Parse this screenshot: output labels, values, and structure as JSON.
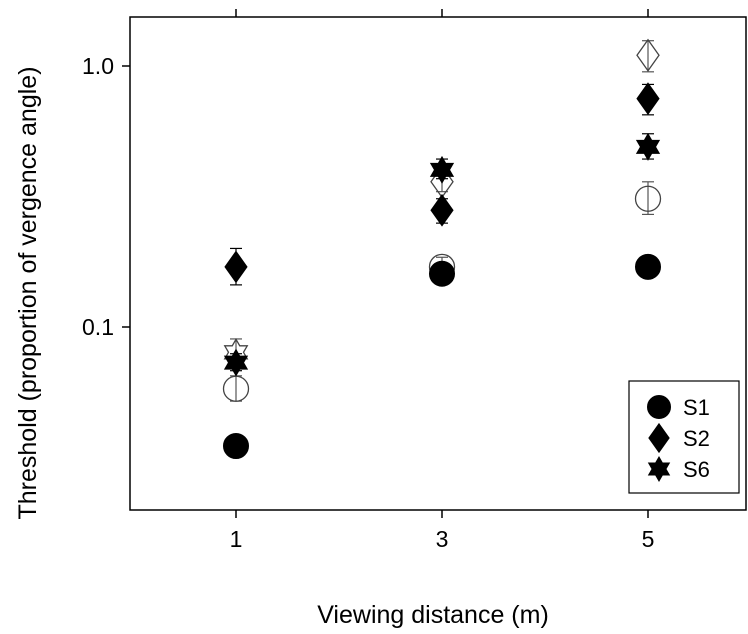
{
  "chart_data": {
    "type": "scatter",
    "title": "",
    "xlabel": "Viewing distance (m)",
    "ylabel": "Threshold (proportion of vergence angle)",
    "x_ticks": [
      1,
      3,
      5
    ],
    "x_tick_labels": [
      "1",
      "3",
      "5"
    ],
    "y_ticks": [
      0.1,
      1.0
    ],
    "y_tick_labels": [
      "0.1",
      "1.0"
    ],
    "xlim": [
      0,
      6
    ],
    "ylim": [
      0.022,
      2.0
    ],
    "y_scale": "log",
    "grid": false,
    "legend_position": "bottom-right",
    "series": [
      {
        "name": "S1",
        "marker": "circle",
        "filled": true,
        "points": [
          {
            "x": 1,
            "y": 0.035,
            "err_low": 0.032,
            "err_high": 0.038
          },
          {
            "x": 3,
            "y": 0.16,
            "err_low": 0.15,
            "err_high": 0.17
          },
          {
            "x": 5,
            "y": 0.17,
            "err_low": 0.155,
            "err_high": 0.185
          }
        ]
      },
      {
        "name": "S2",
        "marker": "diamond",
        "filled": true,
        "points": [
          {
            "x": 1,
            "y": 0.17,
            "err_low": 0.145,
            "err_high": 0.2
          },
          {
            "x": 3,
            "y": 0.28,
            "err_low": 0.25,
            "err_high": 0.31
          },
          {
            "x": 5,
            "y": 0.75,
            "err_low": 0.65,
            "err_high": 0.85
          }
        ]
      },
      {
        "name": "S6",
        "marker": "star",
        "filled": true,
        "points": [
          {
            "x": 1,
            "y": 0.073,
            "err_low": 0.068,
            "err_high": 0.079
          },
          {
            "x": 3,
            "y": 0.4,
            "err_low": 0.37,
            "err_high": 0.44
          },
          {
            "x": 5,
            "y": 0.49,
            "err_low": 0.44,
            "err_high": 0.55
          }
        ]
      },
      {
        "marker": "circle",
        "filled": false,
        "points": [
          {
            "x": 1,
            "y": 0.058,
            "err_low": 0.052,
            "err_high": 0.065
          },
          {
            "x": 3,
            "y": 0.17,
            "err_low": 0.16,
            "err_high": 0.185
          },
          {
            "x": 5,
            "y": 0.31,
            "err_low": 0.27,
            "err_high": 0.36
          }
        ]
      },
      {
        "marker": "diamond",
        "filled": false,
        "points": [
          {
            "x": 3,
            "y": 0.36,
            "err_low": 0.33,
            "err_high": 0.39
          },
          {
            "x": 5,
            "y": 1.1,
            "err_low": 0.95,
            "err_high": 1.25
          }
        ]
      },
      {
        "marker": "star",
        "filled": false,
        "points": [
          {
            "x": 1,
            "y": 0.08,
            "err_low": 0.074,
            "err_high": 0.09
          }
        ]
      }
    ]
  }
}
